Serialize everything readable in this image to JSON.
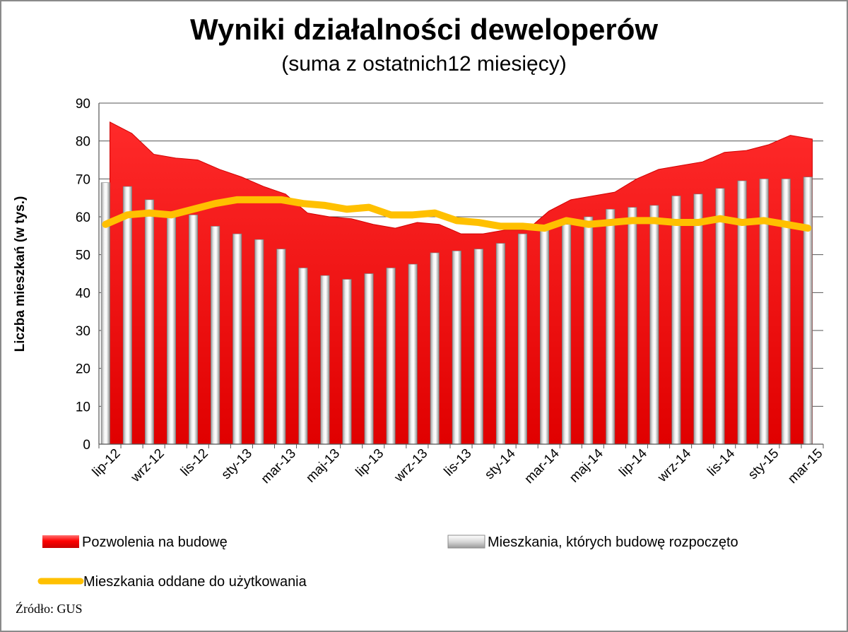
{
  "chart_data": {
    "type": "bar",
    "title": "Wyniki działalności deweloperów",
    "subtitle": "(suma z ostatnich12 miesięcy)",
    "xlabel": "",
    "ylabel": "Liczba  mieszkań (w tys.)",
    "ylim": [
      0,
      90
    ],
    "yticks": [
      0,
      10,
      20,
      30,
      40,
      50,
      60,
      70,
      80,
      90
    ],
    "grid": true,
    "legend_position": "bottom",
    "categories": [
      "lip-12",
      "sie-12",
      "wrz-12",
      "paź-12",
      "lis-12",
      "gru-12",
      "sty-13",
      "lut-13",
      "mar-13",
      "kwi-13",
      "maj-13",
      "cze-13",
      "lip-13",
      "sie-13",
      "wrz-13",
      "paź-13",
      "lis-13",
      "gru-13",
      "sty-14",
      "lut-14",
      "mar-14",
      "kwi-14",
      "maj-14",
      "cze-14",
      "lip-14",
      "sie-14",
      "wrz-14",
      "paź-14",
      "lis-14",
      "gru-14",
      "sty-15",
      "lut-15",
      "mar-15"
    ],
    "tick_labels": [
      "lip-12",
      "",
      "wrz-12",
      "",
      "lis-12",
      "",
      "sty-13",
      "",
      "mar-13",
      "",
      "maj-13",
      "",
      "lip-13",
      "",
      "wrz-13",
      "",
      "lis-13",
      "",
      "sty-14",
      "",
      "mar-14",
      "",
      "maj-14",
      "",
      "lip-14",
      "",
      "wrz-14",
      "",
      "lis-14",
      "",
      "sty-15",
      "",
      "mar-15"
    ],
    "series": [
      {
        "name": "Pozwolenia na budowę",
        "type": "area",
        "color": "#ff0000",
        "values": [
          85,
          82,
          76.5,
          75.5,
          75,
          72.5,
          70.5,
          68,
          66,
          61,
          60,
          59.5,
          58,
          57,
          58.5,
          58,
          55.5,
          55.5,
          56.5,
          56.5,
          61.5,
          64.5,
          65.5,
          66.5,
          70,
          72.5,
          73.5,
          74.5,
          77,
          77.5,
          79,
          81.5,
          80.5
        ]
      },
      {
        "name": "Mieszkania, których budowę rozpoczęto",
        "type": "bar",
        "color": "#c0c0c0",
        "values": [
          69,
          68,
          64.5,
          60.5,
          60.5,
          57.5,
          55.5,
          54,
          51.5,
          46.5,
          44.5,
          43.5,
          45,
          46.5,
          47.5,
          50.5,
          51,
          51.5,
          53,
          55.5,
          57,
          58,
          60,
          62,
          62.5,
          63,
          65.5,
          66,
          67.5,
          69.5,
          70,
          70,
          70.5
        ]
      },
      {
        "name": "Mieszkania oddane do użytkowania",
        "type": "line",
        "color": "#ffc000",
        "values": [
          58,
          60.5,
          61,
          60.5,
          62,
          63.5,
          64.5,
          64.5,
          64.5,
          63.5,
          63,
          62,
          62.5,
          60.5,
          60.5,
          61,
          59,
          58.5,
          57.5,
          57.5,
          57,
          59,
          58,
          58.5,
          59,
          59,
          58.5,
          58.5,
          59.5,
          58.5,
          59,
          58,
          57
        ]
      }
    ]
  },
  "source_note": "Źródło: GUS"
}
